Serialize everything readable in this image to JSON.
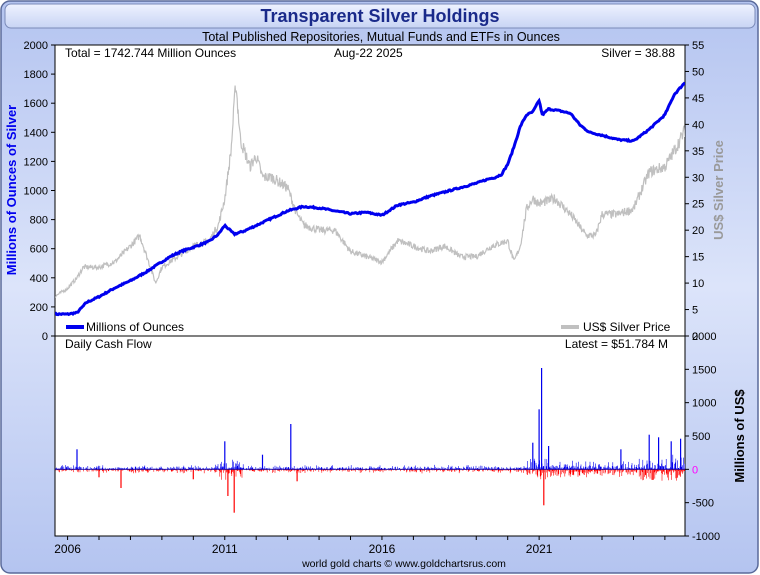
{
  "chart_data": [
    {
      "type": "line",
      "title": "Transparent Silver Holdings",
      "subtitle": "Total Published Repositories, Mutual Funds and ETFs in Ounces",
      "annotations": {
        "total": "Total = 1742.744 Million Ounces",
        "date": "Aug-22  2025",
        "silver": "Silver = 38.88"
      },
      "ylabel": "Millions of Ounces of Silver",
      "y2label": "US$ Silver Price",
      "ylim": [
        0,
        2000
      ],
      "y2lim": [
        0,
        55
      ],
      "yticks": [
        "0",
        "200",
        "400",
        "600",
        "800",
        "1000",
        "1200",
        "1400",
        "1600",
        "1800",
        "2000"
      ],
      "y2ticks": [
        "0",
        "5",
        "10",
        "15",
        "20",
        "25",
        "30",
        "35",
        "40",
        "45",
        "50",
        "55"
      ],
      "xlim": [
        2005.6,
        2025.64
      ],
      "xticks": [
        "2006",
        "2011",
        "2016",
        "2021"
      ],
      "grid": false,
      "legend_position": "bottom",
      "series": [
        {
          "name": "Millions of Ounces",
          "axis": "left",
          "color": "#0000ee",
          "x": [
            2005.6,
            2006.0,
            2006.3,
            2006.6,
            2007.0,
            2007.5,
            2008.0,
            2008.5,
            2009.0,
            2009.3,
            2009.6,
            2010.0,
            2010.5,
            2010.8,
            2011.0,
            2011.2,
            2011.3,
            2011.6,
            2012.0,
            2012.5,
            2013.0,
            2013.5,
            2014.0,
            2014.5,
            2015.0,
            2015.5,
            2016.0,
            2016.5,
            2017.0,
            2017.5,
            2018.0,
            2018.5,
            2019.0,
            2019.4,
            2019.6,
            2019.8,
            2020.0,
            2020.2,
            2020.4,
            2020.6,
            2020.8,
            2021.0,
            2021.1,
            2021.3,
            2021.6,
            2022.0,
            2022.3,
            2022.6,
            2023.0,
            2023.5,
            2024.0,
            2024.5,
            2025.0,
            2025.3,
            2025.64
          ],
          "y": [
            150,
            150,
            160,
            230,
            270,
            330,
            380,
            440,
            510,
            550,
            580,
            610,
            650,
            700,
            760,
            720,
            700,
            720,
            760,
            810,
            860,
            890,
            880,
            860,
            840,
            850,
            830,
            900,
            920,
            960,
            990,
            1020,
            1050,
            1080,
            1090,
            1110,
            1180,
            1300,
            1440,
            1520,
            1540,
            1620,
            1520,
            1560,
            1550,
            1530,
            1450,
            1400,
            1380,
            1350,
            1340,
            1420,
            1520,
            1660,
            1742.744
          ]
        },
        {
          "name": "US$ Silver Price",
          "axis": "right",
          "color": "#c0c0c0",
          "x": [
            2005.6,
            2006.0,
            2006.3,
            2006.5,
            2007.0,
            2007.5,
            2008.0,
            2008.3,
            2008.8,
            2009.0,
            2009.5,
            2010.0,
            2010.5,
            2010.8,
            2011.0,
            2011.2,
            2011.35,
            2011.5,
            2011.8,
            2012.0,
            2012.2,
            2012.5,
            2013.0,
            2013.3,
            2013.5,
            2014.0,
            2014.5,
            2015.0,
            2015.5,
            2016.0,
            2016.5,
            2017.0,
            2017.5,
            2018.0,
            2018.5,
            2019.0,
            2019.5,
            2020.0,
            2020.2,
            2020.4,
            2020.6,
            2020.8,
            2021.0,
            2021.5,
            2022.0,
            2022.5,
            2022.8,
            2023.0,
            2023.5,
            2024.0,
            2024.5,
            2025.0,
            2025.3,
            2025.64
          ],
          "y": [
            7.5,
            9,
            11,
            13,
            13,
            14,
            17,
            19,
            10,
            13,
            15,
            17,
            18,
            21,
            26,
            35,
            48,
            37,
            32,
            34,
            30,
            30,
            28,
            23,
            21,
            20,
            20,
            16,
            15,
            14,
            18,
            17,
            16,
            17,
            15,
            15,
            17,
            18,
            14,
            17,
            24,
            26,
            25,
            26,
            23,
            19,
            19,
            23,
            23,
            24,
            31,
            32,
            35,
            38.88
          ]
        }
      ]
    },
    {
      "type": "bar",
      "title": "Daily Cash Flow",
      "annotations": {
        "latest": "Latest = $51.784 M"
      },
      "ylabel": "Millions of US$",
      "ylim": [
        -1000,
        2000
      ],
      "yticks": [
        "-1000",
        "-500",
        "0",
        "500",
        "1000",
        "1500",
        "2000"
      ],
      "colors": {
        "inflow": "#0000ee",
        "outflow": "#ff0000"
      },
      "events": [
        {
          "x": 2006.3,
          "y": 300
        },
        {
          "x": 2007.0,
          "y": -120
        },
        {
          "x": 2007.7,
          "y": -280
        },
        {
          "x": 2010.0,
          "y": -150
        },
        {
          "x": 2011.0,
          "y": 420
        },
        {
          "x": 2011.1,
          "y": -400
        },
        {
          "x": 2011.3,
          "y": -650
        },
        {
          "x": 2012.2,
          "y": 220
        },
        {
          "x": 2013.1,
          "y": 680
        },
        {
          "x": 2013.3,
          "y": -180
        },
        {
          "x": 2020.8,
          "y": 400
        },
        {
          "x": 2021.0,
          "y": 900
        },
        {
          "x": 2021.08,
          "y": 1520
        },
        {
          "x": 2021.15,
          "y": -540
        },
        {
          "x": 2021.3,
          "y": 350
        },
        {
          "x": 2023.6,
          "y": 300
        },
        {
          "x": 2024.5,
          "y": 520
        },
        {
          "x": 2024.8,
          "y": 480
        },
        {
          "x": 2025.2,
          "y": 420
        },
        {
          "x": 2025.5,
          "y": 460
        }
      ]
    }
  ],
  "footer": "world gold charts © www.goldchartsrus.com"
}
